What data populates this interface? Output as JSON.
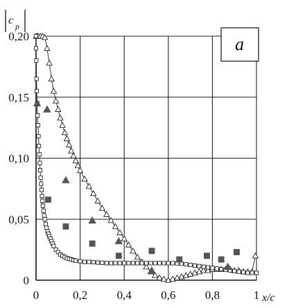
{
  "chart_data": {
    "type": "scatter",
    "panel_label": "a",
    "ylabel": "c",
    "ylabel_sub": "p",
    "xlabel": "x/c",
    "xlim": [
      0,
      1
    ],
    "ylim": [
      0,
      0.2
    ],
    "x_ticks": [
      "0",
      "0,2",
      "0,4",
      "0,6",
      "0,8",
      "1"
    ],
    "x_tick_values": [
      0,
      0.2,
      0.4,
      0.6,
      0.8,
      1.0
    ],
    "y_ticks": [
      "0",
      "0,05",
      "0,10",
      "0,15",
      "0,20"
    ],
    "y_tick_values": [
      0,
      0.05,
      0.1,
      0.15,
      0.2
    ],
    "grid": true,
    "series": [
      {
        "marker": "triangle-open",
        "line": true,
        "x": [
          0.0,
          0.005,
          0.01,
          0.02,
          0.03,
          0.04,
          0.05,
          0.06,
          0.07,
          0.08,
          0.09,
          0.1,
          0.11,
          0.12,
          0.13,
          0.14,
          0.15,
          0.16,
          0.17,
          0.18,
          0.19,
          0.2,
          0.22,
          0.24,
          0.26,
          0.28,
          0.3,
          0.32,
          0.34,
          0.36,
          0.38,
          0.4,
          0.42,
          0.44,
          0.46,
          0.48,
          0.5,
          0.52,
          0.54,
          0.56,
          0.58,
          0.6,
          0.62,
          0.64,
          0.66,
          0.68,
          0.7,
          0.72,
          0.74,
          0.76,
          0.78,
          0.8,
          0.82,
          0.84,
          0.86,
          0.88,
          0.9,
          0.92,
          0.94,
          0.96,
          0.98,
          0.995
        ],
        "y": [
          0.2,
          0.2,
          0.2,
          0.2,
          0.2,
          0.199,
          0.19,
          0.178,
          0.165,
          0.155,
          0.147,
          0.14,
          0.133,
          0.127,
          0.121,
          0.116,
          0.111,
          0.106,
          0.102,
          0.098,
          0.094,
          0.09,
          0.083,
          0.077,
          0.071,
          0.065,
          0.059,
          0.054,
          0.049,
          0.044,
          0.039,
          0.034,
          0.029,
          0.024,
          0.019,
          0.015,
          0.011,
          0.007,
          0.004,
          0.002,
          0.001,
          0.0,
          0.001,
          0.002,
          0.003,
          0.004,
          0.005,
          0.006,
          0.007,
          0.008,
          0.008,
          0.009,
          0.009,
          0.009,
          0.009,
          0.009,
          0.008,
          0.008,
          0.007,
          0.007,
          0.007,
          0.02
        ]
      },
      {
        "marker": "square-open",
        "line": true,
        "x": [
          0.0,
          0.0,
          0.001,
          0.002,
          0.003,
          0.005,
          0.007,
          0.009,
          0.011,
          0.013,
          0.015,
          0.017,
          0.019,
          0.021,
          0.023,
          0.025,
          0.027,
          0.029,
          0.031,
          0.034,
          0.037,
          0.04,
          0.044,
          0.048,
          0.052,
          0.056,
          0.06,
          0.065,
          0.07,
          0.075,
          0.08,
          0.09,
          0.1,
          0.11,
          0.12,
          0.13,
          0.14,
          0.15,
          0.16,
          0.17,
          0.18,
          0.2,
          0.22,
          0.24,
          0.26,
          0.28,
          0.3,
          0.32,
          0.34,
          0.36,
          0.38,
          0.4,
          0.42,
          0.44,
          0.46,
          0.48,
          0.5,
          0.52,
          0.54,
          0.56,
          0.58,
          0.6,
          0.62,
          0.64,
          0.66,
          0.68,
          0.7,
          0.72,
          0.74,
          0.76,
          0.78,
          0.8,
          0.82,
          0.84,
          0.86,
          0.88,
          0.9,
          0.92,
          0.94,
          0.96,
          0.98,
          1.0
        ],
        "y": [
          0.2,
          0.19,
          0.18,
          0.165,
          0.155,
          0.145,
          0.135,
          0.127,
          0.118,
          0.11,
          0.103,
          0.096,
          0.09,
          0.084,
          0.079,
          0.074,
          0.069,
          0.065,
          0.061,
          0.057,
          0.053,
          0.05,
          0.046,
          0.043,
          0.04,
          0.038,
          0.036,
          0.034,
          0.032,
          0.03,
          0.028,
          0.025,
          0.023,
          0.021,
          0.02,
          0.019,
          0.018,
          0.0175,
          0.017,
          0.0165,
          0.016,
          0.0155,
          0.015,
          0.015,
          0.0148,
          0.0145,
          0.0143,
          0.014,
          0.014,
          0.014,
          0.014,
          0.014,
          0.014,
          0.014,
          0.014,
          0.014,
          0.014,
          0.014,
          0.014,
          0.014,
          0.014,
          0.014,
          0.014,
          0.0138,
          0.0135,
          0.013,
          0.0125,
          0.012,
          0.0115,
          0.011,
          0.0105,
          0.01,
          0.0095,
          0.009,
          0.0085,
          0.008,
          0.0075,
          0.007,
          0.0065,
          0.006,
          0.006,
          0.006
        ]
      },
      {
        "marker": "triangle-filled",
        "line": false,
        "x": [
          0.005,
          0.05,
          0.135,
          0.255,
          0.375,
          0.525,
          0.87
        ],
        "y": [
          0.145,
          0.14,
          0.082,
          0.049,
          0.032,
          0.008,
          0.011
        ]
      },
      {
        "marker": "square-filled",
        "line": false,
        "x": [
          0.055,
          0.135,
          0.255,
          0.375,
          0.525,
          0.65,
          0.775,
          0.84,
          0.91
        ],
        "y": [
          0.066,
          0.044,
          0.03,
          0.02,
          0.024,
          0.017,
          0.02,
          0.017,
          0.023
        ]
      }
    ]
  }
}
